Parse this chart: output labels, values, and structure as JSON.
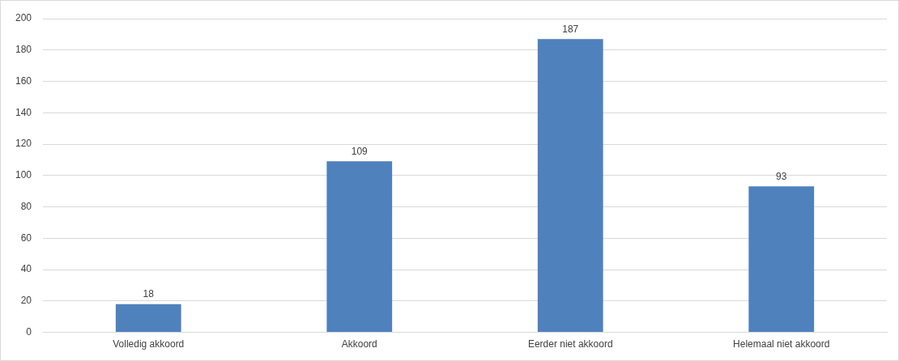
{
  "chart_data": {
    "type": "bar",
    "categories": [
      "Volledig akkoord",
      "Akkoord",
      "Eerder niet akkoord",
      "Helemaal niet akkoord"
    ],
    "values": [
      18,
      109,
      187,
      93
    ],
    "color": "#4f81bd",
    "ylim": [
      0,
      200
    ],
    "yticks": [
      0,
      20,
      40,
      60,
      80,
      100,
      120,
      140,
      160,
      180,
      200
    ],
    "grid": "y",
    "data_labels": true
  }
}
